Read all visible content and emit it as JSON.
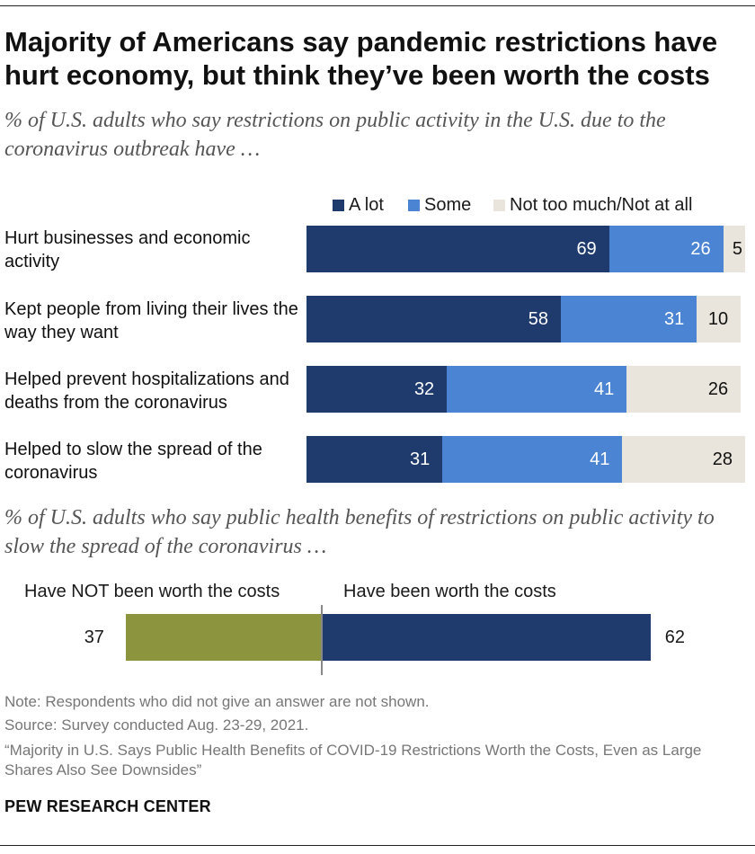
{
  "title": "Majority of Americans say pandemic restrictions have hurt economy, but think they’ve been worth the costs",
  "subtitle1": "% of U.S. adults who say restrictions on public activity in the U.S. due to the coronavirus outbreak have …",
  "subtitle2": "% of U.S. adults who say public health benefits of restrictions on public activity to slow the spread of the coronavirus …",
  "colors": {
    "a_lot": "#1f3b6e",
    "some": "#4a84d2",
    "not_much": "#e9e5dc",
    "not_worth": "#8c943e",
    "worth": "#1f3b6e"
  },
  "chart_data": [
    {
      "type": "bar",
      "orientation": "horizontal",
      "stacked": true,
      "legend": [
        "A lot",
        "Some",
        "Not too much/Not at all"
      ],
      "categories": [
        "Hurt businesses and economic activity",
        "Kept people from living their lives the way they want",
        "Helped prevent hospitalizations and deaths from the coronavirus",
        "Helped to slow the spread of the coronavirus"
      ],
      "series": [
        {
          "name": "A lot",
          "values": [
            69,
            58,
            32,
            31
          ]
        },
        {
          "name": "Some",
          "values": [
            26,
            31,
            41,
            41
          ]
        },
        {
          "name": "Not too much/Not at all",
          "values": [
            5,
            10,
            26,
            28
          ]
        }
      ]
    },
    {
      "type": "bar",
      "orientation": "horizontal",
      "diverging": true,
      "categories": [
        "Have NOT been worth the costs",
        "Have been worth the costs"
      ],
      "values": [
        37,
        62
      ]
    }
  ],
  "notes": {
    "note": "Note: Respondents who did not give an answer are not shown.",
    "source": "Source: Survey conducted Aug. 23-29, 2021.",
    "report": "“Majority in U.S. Says Public Health Benefits of COVID-19 Restrictions Worth the Costs, Even as Large Shares Also See Downsides”"
  },
  "brand": "PEW RESEARCH CENTER"
}
